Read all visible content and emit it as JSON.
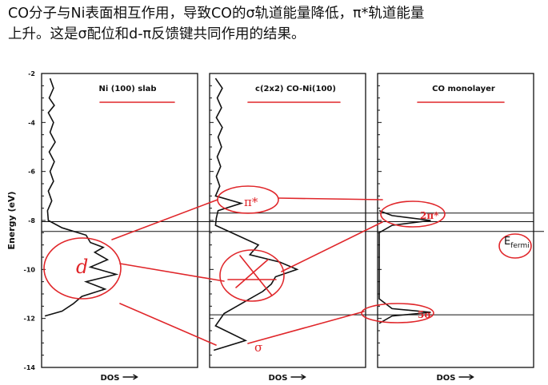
{
  "caption": {
    "line1": "CO分子与Ni表面相互作用，导致CO的σ轨道能量降低，π*轨道能量",
    "line2": "上升。这是σ配位和d-π反馈键共同作用的结果。"
  },
  "chart_data": {
    "type": "line",
    "ylabel": "Energy (eV)",
    "ylim": [
      -14,
      -2
    ],
    "yticks": [
      -2,
      -4,
      -6,
      -8,
      -10,
      -12,
      -14
    ],
    "xlabel": "DOS",
    "panels": [
      {
        "title": "Ni (100) slab",
        "series": {
          "energy": [
            -2.2,
            -2.6,
            -3,
            -3.3,
            -3.6,
            -4,
            -4.4,
            -4.8,
            -5.2,
            -5.6,
            -6,
            -6.4,
            -6.8,
            -7.2,
            -7.6,
            -8,
            -8.3,
            -8.6,
            -8.9,
            -9.1,
            -9.3,
            -9.6,
            -9.9,
            -10.2,
            -10.5,
            -10.8,
            -11.1,
            -11.4,
            -11.7,
            -11.9
          ],
          "dos": [
            0.08,
            0.12,
            0.07,
            0.13,
            0.06,
            0.12,
            0.08,
            0.14,
            0.07,
            0.13,
            0.08,
            0.12,
            0.06,
            0.1,
            0.05,
            0.06,
            0.22,
            0.5,
            0.55,
            0.7,
            0.6,
            0.75,
            0.55,
            0.85,
            0.5,
            0.72,
            0.45,
            0.35,
            0.22,
            0.02
          ]
        }
      },
      {
        "title": "c(2x2) CO-Ni(100)",
        "series": {
          "energy": [
            -2.2,
            -2.6,
            -3,
            -3.4,
            -3.8,
            -4.2,
            -4.6,
            -5,
            -5.4,
            -5.8,
            -6.2,
            -6.6,
            -7,
            -7.3,
            -7.6,
            -7.9,
            -8.2,
            -8.6,
            -9,
            -9.4,
            -9.7,
            -10,
            -10.3,
            -10.6,
            -10.9,
            -11.2,
            -11.5,
            -11.8,
            -12.3,
            -12.9,
            -13.3
          ],
          "dos": [
            0.05,
            0.13,
            0.07,
            0.12,
            0.06,
            0.13,
            0.08,
            0.12,
            0.07,
            0.11,
            0.06,
            0.1,
            0.05,
            0.35,
            0.08,
            0.06,
            0.05,
            0.3,
            0.55,
            0.45,
            0.8,
            1.0,
            0.75,
            0.7,
            0.6,
            0.45,
            0.3,
            0.15,
            0.05,
            0.4,
            0.03
          ]
        }
      },
      {
        "title": "CO monolayer",
        "series": {
          "energy": [
            -7.6,
            -7.8,
            -8.0,
            -8.2,
            -8.5,
            -11.2,
            -11.6,
            -11.75,
            -11.9,
            -12.2
          ],
          "dos": [
            0.0,
            0.15,
            0.6,
            0.15,
            0.0,
            0.0,
            0.15,
            0.6,
            0.15,
            0.0
          ]
        }
      }
    ],
    "annotations": {
      "pi_star": "π*",
      "sigma": "σ",
      "two_pi": "2π*",
      "five_sigma": "5σ",
      "d": "d",
      "e_fermi": "Efermi"
    }
  }
}
